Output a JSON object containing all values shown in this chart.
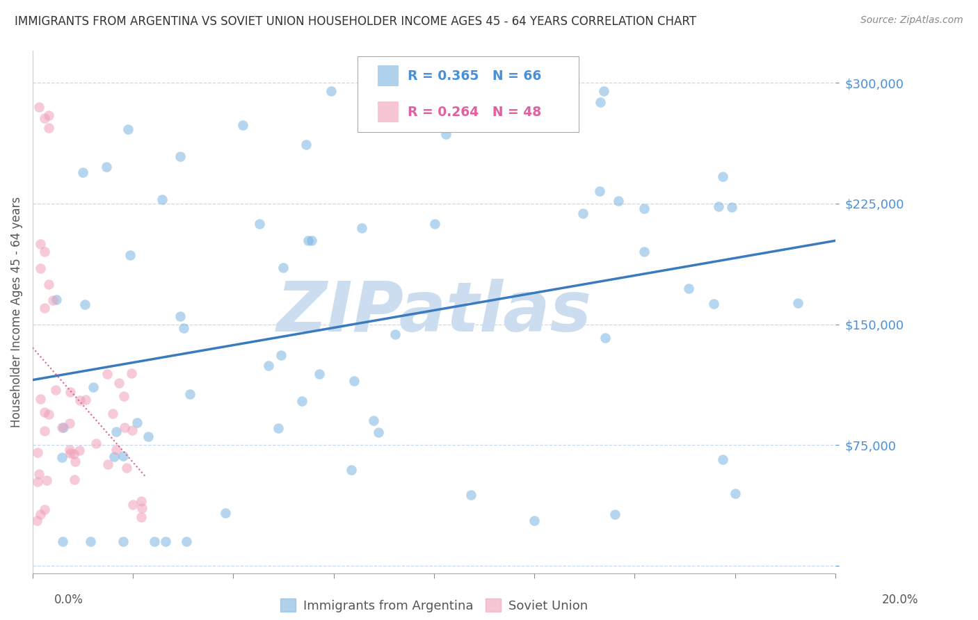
{
  "title": "IMMIGRANTS FROM ARGENTINA VS SOVIET UNION HOUSEHOLDER INCOME AGES 45 - 64 YEARS CORRELATION CHART",
  "source": "Source: ZipAtlas.com",
  "ylabel": "Householder Income Ages 45 - 64 years",
  "watermark": "ZIPatlas",
  "xlim": [
    0.0,
    0.2
  ],
  "ylim": [
    -5000,
    320000
  ],
  "yticks": [
    0,
    75000,
    150000,
    225000,
    300000
  ],
  "xticks": [
    0.0,
    0.025,
    0.05,
    0.075,
    0.1,
    0.125,
    0.15,
    0.175,
    0.2
  ],
  "argentina_R": "0.365",
  "argentina_N": "66",
  "soviet_R": "0.264",
  "soviet_N": "48",
  "argentina_color": "#7ab3e0",
  "soviet_color": "#f0a0b8",
  "argentina_line_color": "#3a7abf",
  "soviet_line_color": "#e06080",
  "scatter_alpha": 0.55,
  "scatter_size": 110,
  "background_color": "#ffffff",
  "grid_color": "#c8d8e8",
  "title_color": "#333333",
  "axis_label_color": "#555555",
  "tick_label_color": "#4a90d9",
  "watermark_color": "#ccddef",
  "legend_label_argentina": "Immigrants from Argentina",
  "legend_label_soviet": "Soviet Union"
}
